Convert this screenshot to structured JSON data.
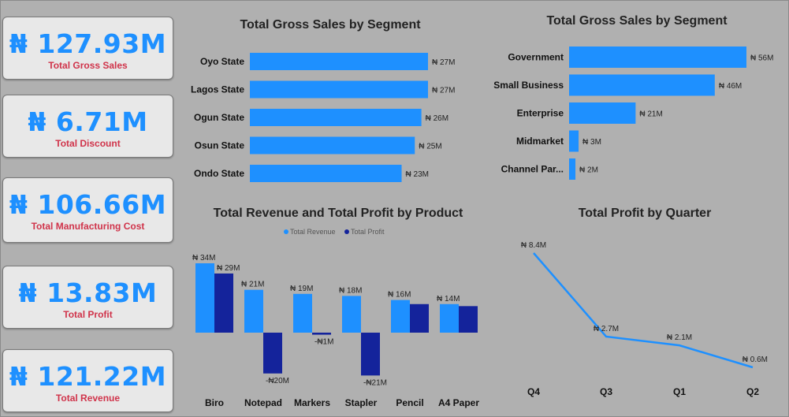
{
  "kpis": [
    {
      "value": "₦ 127.93M",
      "label": "Total Gross Sales"
    },
    {
      "value": "₦ 6.71M",
      "label": "Total Discount"
    },
    {
      "value": "₦ 106.66M",
      "label": "Total Manufacturing Cost"
    },
    {
      "value": "₦ 13.83M",
      "label": "Total Profit"
    },
    {
      "value": "₦ 121.22M",
      "label": "Total Revenue"
    }
  ],
  "colors": {
    "primary": "#1e90ff",
    "secondary": "#14239b",
    "label": "#d0334a"
  },
  "chart_data": [
    {
      "type": "bar",
      "orientation": "horizontal",
      "title": "Total Gross Sales by Segment",
      "categories": [
        "Oyo State",
        "Lagos State",
        "Ogun State",
        "Osun State",
        "Ondo State"
      ],
      "values": [
        27,
        27,
        26,
        25,
        23
      ],
      "data_labels": [
        "₦ 27M",
        "₦ 27M",
        "₦ 26M",
        "₦ 25M",
        "₦ 23M"
      ]
    },
    {
      "type": "bar",
      "orientation": "horizontal",
      "title": "Total Gross Sales by Segment",
      "categories": [
        "Government",
        "Small Business",
        "Enterprise",
        "Midmarket",
        "Channel Par..."
      ],
      "values": [
        56,
        46,
        21,
        3,
        2
      ],
      "data_labels": [
        "₦ 56M",
        "₦ 46M",
        "₦ 21M",
        "₦ 3M",
        "₦ 2M"
      ]
    },
    {
      "type": "bar",
      "orientation": "vertical",
      "title": "Total Revenue and Total Profit by Product",
      "legend": "top",
      "categories": [
        "Biro",
        "Notepad",
        "Markers",
        "Stapler",
        "Pencil",
        "A4 Paper"
      ],
      "series": [
        {
          "name": "Total Revenue",
          "values": [
            34,
            21,
            19,
            18,
            16,
            14
          ],
          "data_labels": [
            "₦ 34M",
            "₦ 21M",
            "₦ 19M",
            "₦ 18M",
            "₦ 16M",
            "₦ 14M"
          ]
        },
        {
          "name": "Total Profit",
          "values": [
            29,
            -20,
            -1,
            -21,
            14,
            13
          ],
          "data_labels": [
            "₦ 29M",
            "-₦20M",
            "-₦1M",
            "-₦21M",
            "",
            ""
          ]
        }
      ]
    },
    {
      "type": "line",
      "title": "Total Profit by Quarter",
      "categories": [
        "Q4",
        "Q3",
        "Q1",
        "Q2"
      ],
      "values": [
        8.4,
        2.7,
        2.1,
        0.6
      ],
      "data_labels": [
        "₦ 8.4M",
        "₦ 2.7M",
        "₦ 2.1M",
        "₦ 0.6M"
      ]
    }
  ]
}
